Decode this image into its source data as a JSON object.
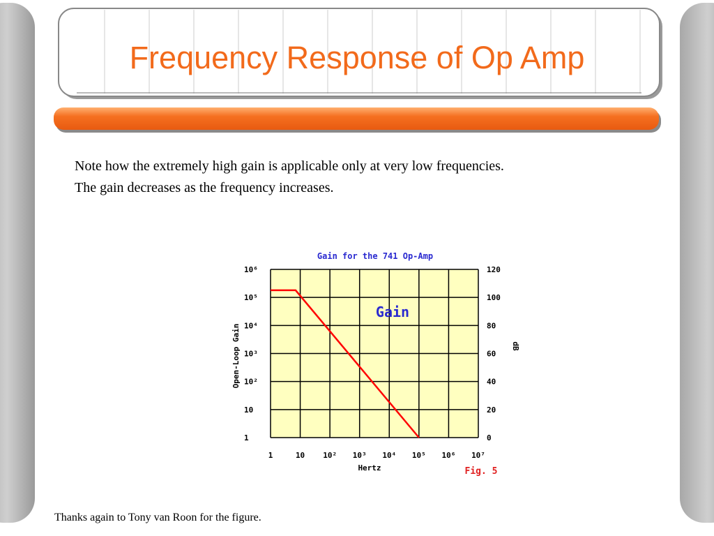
{
  "slide": {
    "title": "Frequency Response of Op Amp",
    "body": [
      "Note how the extremely high gain is applicable only at very low frequencies.",
      "The gain decreases as the frequency increases."
    ],
    "footnote": "Thanks again to Tony van Roon for the figure."
  },
  "chart_data": {
    "type": "line",
    "title": "Gain for the 741 Op-Amp",
    "x_label": "Hertz",
    "y_label": "Open-Loop Gain",
    "y2_label": "dB",
    "annotations": [
      "Gain",
      "Fig. 5"
    ],
    "x": [
      1,
      7,
      100000
    ],
    "values": [
      180000,
      180000,
      1
    ],
    "color": "#ff0000",
    "xscale": "log",
    "yscale": "log",
    "xlim": [
      1,
      10000000
    ],
    "ylim": [
      1,
      1000000
    ],
    "y2lim": [
      0,
      120
    ],
    "xticks": [
      1,
      10,
      {
        "value": 100,
        "label": "10²"
      },
      {
        "value": 1000,
        "label": "10³"
      },
      {
        "value": 10000,
        "label": "10⁴"
      },
      {
        "value": 100000,
        "label": "10⁵"
      },
      {
        "value": 1000000,
        "label": "10⁶"
      },
      {
        "value": 10000000,
        "label": "10⁷"
      }
    ],
    "yticks": [
      1,
      10,
      {
        "value": 100,
        "label": "10²"
      },
      {
        "value": 1000,
        "label": "10³"
      },
      {
        "value": 10000,
        "label": "10⁴"
      },
      {
        "value": 100000,
        "label": "10⁵"
      },
      {
        "value": 1000000,
        "label": "10⁶"
      }
    ],
    "y2ticks": [
      0,
      20,
      40,
      60,
      80,
      100,
      120
    ],
    "grid": true
  }
}
